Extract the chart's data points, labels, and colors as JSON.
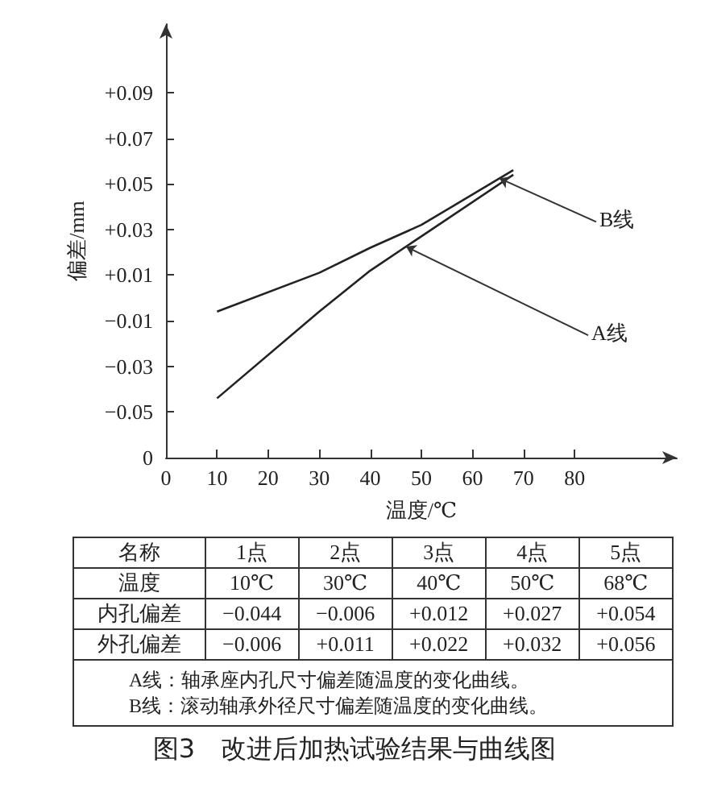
{
  "chart_data": {
    "type": "line",
    "title": "图3　改进后加热试验结果与曲线图",
    "xlabel": "温度/℃",
    "ylabel": "偏差/mm",
    "xlim": [
      0,
      100
    ],
    "xticks": [
      0,
      10,
      20,
      30,
      40,
      50,
      60,
      70,
      80
    ],
    "ylim": [
      -0.07,
      0.12
    ],
    "yticks": [
      {
        "value": -0.07,
        "label": "0"
      },
      {
        "value": -0.05,
        "label": "−0.05"
      },
      {
        "value": -0.03,
        "label": "−0.03"
      },
      {
        "value": -0.01,
        "label": "−0.01"
      },
      {
        "value": 0.01,
        "label": "+0.01"
      },
      {
        "value": 0.03,
        "label": "+0.03"
      },
      {
        "value": 0.05,
        "label": "+0.05"
      },
      {
        "value": 0.07,
        "label": "+0.07"
      },
      {
        "value": 0.09,
        "label": "+0.09"
      }
    ],
    "x": [
      10,
      30,
      40,
      50,
      68
    ],
    "series": [
      {
        "name": "A线",
        "color": "#222222",
        "values": [
          -0.044,
          -0.006,
          0.012,
          0.027,
          0.054
        ]
      },
      {
        "name": "B线",
        "color": "#222222",
        "values": [
          -0.006,
          0.011,
          0.022,
          0.032,
          0.056
        ]
      }
    ],
    "annotations": [
      "名称",
      "1点",
      "2点",
      "3点",
      "4点",
      "5点",
      "温度",
      "10℃",
      "30℃",
      "40℃",
      "50℃",
      "68℃",
      "内孔偏差",
      "−0.044",
      "−0.006",
      "+0.012",
      "+0.027",
      "+0.054",
      "外孔偏差",
      "−0.006",
      "+0.011",
      "+0.022",
      "+0.032",
      "+0.056",
      "A线：轴承座内孔尺寸偏差随温度的变化曲线。",
      "B线：滚动轴承外径尺寸偏差随温度的变化曲线。"
    ],
    "legend": false,
    "marker": "none",
    "line_style": "solid"
  }
}
